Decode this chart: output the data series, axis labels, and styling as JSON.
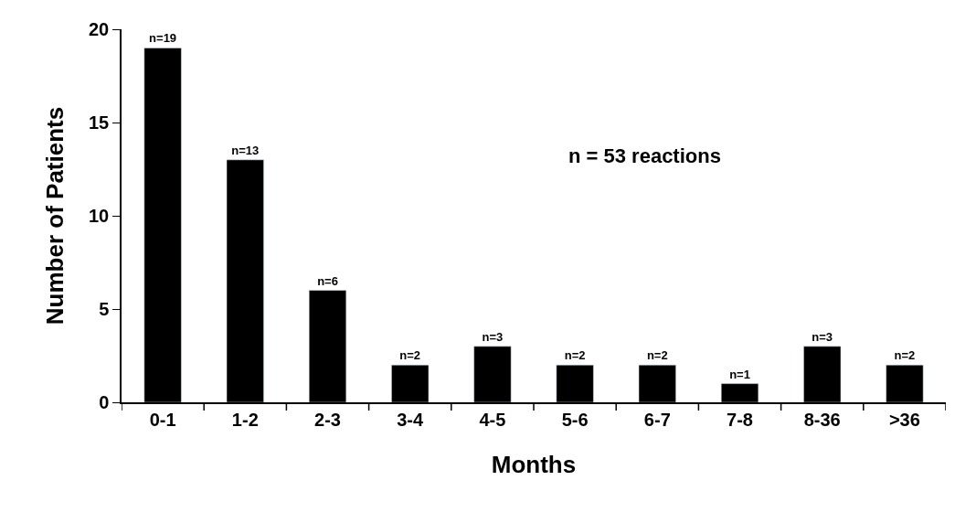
{
  "chart_data": {
    "type": "bar",
    "xlabel": "Months",
    "ylabel": "Number of Patients",
    "categories": [
      "0-1",
      "1-2",
      "2-3",
      "3-4",
      "4-5",
      "5-6",
      "6-7",
      "7-8",
      "8-36",
      ">36"
    ],
    "values": [
      19,
      13,
      6,
      2,
      3,
      2,
      2,
      1,
      3,
      2
    ],
    "value_labels": [
      "n=19",
      "n=13",
      "n=6",
      "n=2",
      "n=3",
      "n=2",
      "n=2",
      "n=1",
      "n=3",
      "n=2"
    ],
    "color": "#000000",
    "ylim": [
      0,
      20
    ],
    "yticks": [
      0,
      5,
      10,
      15,
      20
    ],
    "annotations": [
      "n = 53 reactions"
    ]
  }
}
